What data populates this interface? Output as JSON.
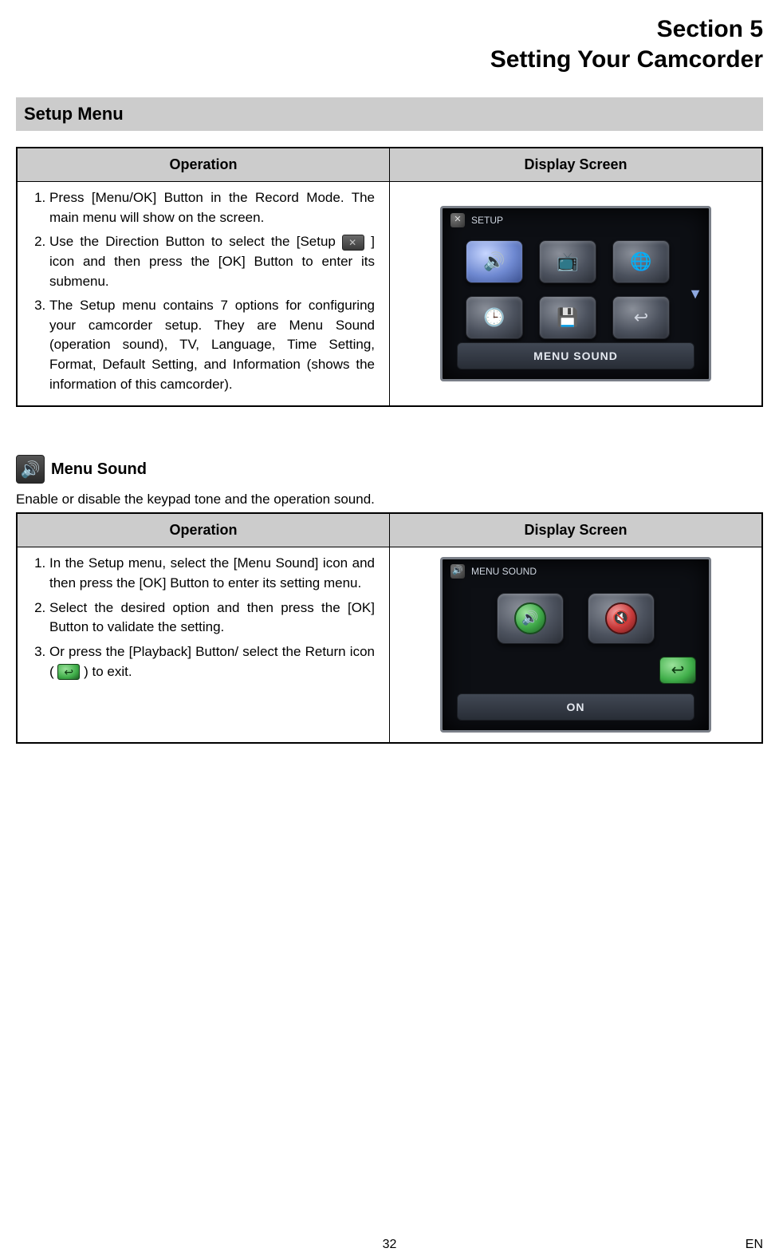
{
  "section": {
    "number": "Section 5",
    "title": "Setting Your Camcorder"
  },
  "setup_bar": "Setup Menu",
  "table1": {
    "col_op": "Operation",
    "col_ds": "Display Screen",
    "steps": [
      "Press [Menu/OK] Button in the Record Mode. The main menu will show on the screen.",
      "Use the Direction Button to select the [Setup ",
      " ] icon and then press the [OK] Button to enter its submenu.",
      "The Setup menu contains 7 options for configuring your camcorder setup. They are Menu Sound (operation sound), TV, Language, Time Setting, Format, Default Setting, and Information (shows the information of this camcorder)."
    ],
    "lcd": {
      "title": "SETUP",
      "label_bar": "MENU SOUND",
      "tiles": [
        "🔊",
        "📺",
        "🌐",
        "🕒",
        "💾",
        "↩"
      ],
      "selected_index": 0
    }
  },
  "subheading": "Menu Sound",
  "sub_desc": "Enable or disable the keypad tone and the operation sound.",
  "table2": {
    "col_op": "Operation",
    "col_ds": "Display Screen",
    "steps": [
      "In the Setup menu, select the [Menu Sound] icon and then press the [OK] Button to enter its setting menu.",
      "Select the desired option and then press the [OK] Button to validate the setting.",
      "Or press the [Playback] Button/ select the Return icon ( ",
      " ) to exit."
    ],
    "lcd": {
      "title": "MENU SOUND",
      "label_bar": "ON"
    }
  },
  "footer": {
    "page": "32",
    "lang": "EN"
  }
}
